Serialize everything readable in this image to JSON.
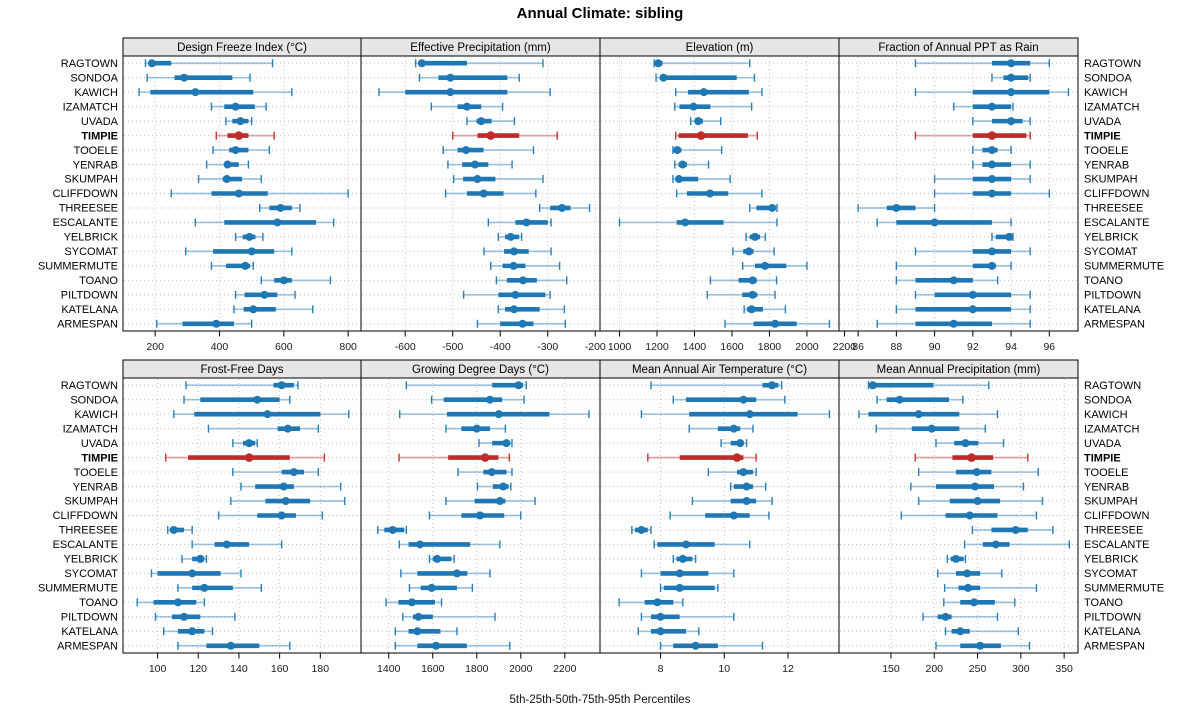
{
  "title": "Annual Climate: sibling",
  "caption": "5th-25th-50th-75th-95th Percentiles",
  "percentiles": [
    "5th",
    "25th",
    "50th",
    "75th",
    "95th"
  ],
  "highlighted_site": "TIMPIE",
  "colors": {
    "normal": "#1f77b4",
    "highlight": "#bf2b28",
    "strip_bg": "#e6e6e6",
    "panel_border": "#000000",
    "grid": "#c3c3c3",
    "axis_text": "#1a1a1a"
  },
  "sites": [
    "RAGTOWN",
    "SONDOA",
    "KAWICH",
    "IZAMATCH",
    "UVADA",
    "TIMPIE",
    "TOOELE",
    "YENRAB",
    "SKUMPAH",
    "CLIFFDOWN",
    "THREESEE",
    "ESCALANTE",
    "YELBRICK",
    "SYCOMAT",
    "SUMMERMUTE",
    "TOANO",
    "PILTDOWN",
    "KATELANA",
    "ARMESPAN"
  ],
  "chart_data": [
    {
      "type": "percentile-dotplot",
      "row": "top",
      "col": 0,
      "title": "Design Freeze Index (°C)",
      "xlim": [
        100,
        840
      ],
      "ticks": [
        200,
        400,
        600,
        800
      ],
      "series": [
        [
          170,
          180,
          190,
          250,
          565
        ],
        [
          175,
          260,
          290,
          440,
          495
        ],
        [
          150,
          185,
          325,
          505,
          625
        ],
        [
          375,
          415,
          450,
          510,
          545
        ],
        [
          420,
          440,
          465,
          490,
          500
        ],
        [
          390,
          425,
          460,
          490,
          570
        ],
        [
          380,
          430,
          450,
          490,
          555
        ],
        [
          360,
          415,
          425,
          460,
          490
        ],
        [
          335,
          410,
          423,
          470,
          530
        ],
        [
          250,
          375,
          460,
          550,
          800
        ],
        [
          525,
          555,
          590,
          625,
          650
        ],
        [
          325,
          415,
          580,
          700,
          755
        ],
        [
          450,
          472,
          493,
          512,
          535
        ],
        [
          295,
          380,
          500,
          570,
          625
        ],
        [
          375,
          420,
          480,
          495,
          505
        ],
        [
          530,
          570,
          600,
          625,
          745
        ],
        [
          450,
          478,
          540,
          580,
          635
        ],
        [
          445,
          475,
          505,
          575,
          690
        ],
        [
          205,
          285,
          390,
          445,
          500
        ]
      ]
    },
    {
      "type": "percentile-dotplot",
      "row": "top",
      "col": 1,
      "title": "Effective Precipitation (mm)",
      "xlim": [
        -693,
        -190
      ],
      "ticks": [
        -600,
        -500,
        -400,
        -300,
        -200
      ],
      "series": [
        [
          -578,
          -572,
          -565,
          -470,
          -310
        ],
        [
          -570,
          -530,
          -505,
          -385,
          -360
        ],
        [
          -655,
          -600,
          -505,
          -385,
          -295
        ],
        [
          -545,
          -490,
          -470,
          -440,
          -395
        ],
        [
          -470,
          -450,
          -440,
          -418,
          -370
        ],
        [
          -500,
          -448,
          -420,
          -360,
          -280
        ],
        [
          -520,
          -490,
          -472,
          -435,
          -330
        ],
        [
          -510,
          -480,
          -453,
          -425,
          -375
        ],
        [
          -498,
          -478,
          -448,
          -410,
          -310
        ],
        [
          -515,
          -470,
          -435,
          -393,
          -325
        ],
        [
          -317,
          -295,
          -270,
          -252,
          -212
        ],
        [
          -425,
          -368,
          -345,
          -300,
          -293
        ],
        [
          -404,
          -390,
          -378,
          -360,
          -355
        ],
        [
          -434,
          -392,
          -371,
          -340,
          -293
        ],
        [
          -420,
          -395,
          -372,
          -347,
          -275
        ],
        [
          -408,
          -386,
          -352,
          -323,
          -260
        ],
        [
          -477,
          -404,
          -368,
          -305,
          -295
        ],
        [
          -404,
          -390,
          -371,
          -317,
          -265
        ],
        [
          -448,
          -400,
          -353,
          -330,
          -263
        ]
      ]
    },
    {
      "type": "percentile-dotplot",
      "row": "top",
      "col": 2,
      "title": "Elevation (m)",
      "xlim": [
        896,
        2171
      ],
      "ticks": [
        1000,
        1200,
        1400,
        1600,
        1800,
        2000,
        2200
      ],
      "series": [
        [
          1185,
          1195,
          1207,
          1230,
          1695
        ],
        [
          1195,
          1215,
          1235,
          1625,
          1720
        ],
        [
          1300,
          1365,
          1450,
          1690,
          1760
        ],
        [
          1295,
          1320,
          1395,
          1485,
          1705
        ],
        [
          1380,
          1400,
          1420,
          1445,
          1540
        ],
        [
          1300,
          1315,
          1435,
          1685,
          1735
        ],
        [
          1285,
          1297,
          1308,
          1330,
          1545
        ],
        [
          1295,
          1315,
          1337,
          1360,
          1475
        ],
        [
          1285,
          1300,
          1317,
          1420,
          1590
        ],
        [
          1305,
          1360,
          1483,
          1580,
          1760
        ],
        [
          1695,
          1730,
          1815,
          1830,
          1840
        ],
        [
          1000,
          1305,
          1350,
          1555,
          1840
        ],
        [
          1675,
          1695,
          1723,
          1750,
          1778
        ],
        [
          1605,
          1660,
          1690,
          1715,
          1825
        ],
        [
          1657,
          1723,
          1776,
          1890,
          2000
        ],
        [
          1485,
          1635,
          1710,
          1732,
          1838
        ],
        [
          1468,
          1655,
          1710,
          1735,
          1830
        ],
        [
          1665,
          1680,
          1705,
          1765,
          1885
        ],
        [
          1563,
          1715,
          1830,
          1945,
          2120
        ]
      ]
    },
    {
      "type": "percentile-dotplot",
      "row": "top",
      "col": 3,
      "title": "Fraction of Annual PPT as Rain",
      "xlim": [
        85,
        97.5
      ],
      "ticks": [
        86,
        88,
        90,
        92,
        94,
        96
      ],
      "series": [
        [
          89,
          93,
          94,
          95,
          96
        ],
        [
          93,
          93.6,
          94,
          94.9,
          95
        ],
        [
          89,
          92,
          94,
          96,
          97
        ],
        [
          91,
          92,
          93,
          94,
          94.1
        ],
        [
          92,
          93,
          94,
          94.6,
          95
        ],
        [
          89,
          92,
          93,
          94.8,
          95
        ],
        [
          92,
          92.5,
          93,
          93.3,
          94
        ],
        [
          92,
          92.5,
          93,
          94,
          95
        ],
        [
          90,
          92,
          93,
          94,
          95
        ],
        [
          90,
          92,
          93,
          94,
          96
        ],
        [
          86,
          87.5,
          88,
          89,
          90
        ],
        [
          87,
          88,
          90,
          93,
          94
        ],
        [
          93,
          93.2,
          93.9,
          94,
          94.1
        ],
        [
          89,
          92,
          93,
          94,
          95
        ],
        [
          88,
          92,
          93,
          93.2,
          94
        ],
        [
          88,
          89,
          91,
          92,
          93.3
        ],
        [
          89,
          90,
          92,
          94,
          95
        ],
        [
          88,
          89,
          92,
          94,
          95
        ],
        [
          87,
          89,
          91,
          93,
          95
        ]
      ]
    },
    {
      "type": "percentile-dotplot",
      "row": "bottom",
      "col": 0,
      "title": "Frost-Free Days",
      "xlim": [
        83,
        200
      ],
      "ticks": [
        100,
        120,
        140,
        160,
        180
      ],
      "series": [
        [
          114,
          157,
          161,
          167,
          169
        ],
        [
          113,
          121,
          149,
          160,
          165
        ],
        [
          108,
          118,
          154,
          180,
          194
        ],
        [
          125,
          159,
          164,
          170,
          179
        ],
        [
          137,
          142,
          145,
          148,
          149
        ],
        [
          104,
          115,
          145,
          165,
          182
        ],
        [
          137,
          161,
          167,
          172,
          179
        ],
        [
          141,
          148,
          162,
          167,
          190
        ],
        [
          136,
          153,
          163,
          175,
          192
        ],
        [
          130,
          149,
          161,
          168,
          181
        ],
        [
          105,
          106,
          108,
          113,
          117
        ],
        [
          117,
          128,
          134,
          145,
          161
        ],
        [
          112,
          117,
          121,
          123,
          124
        ],
        [
          97,
          100,
          117,
          131,
          141
        ],
        [
          110,
          117,
          123,
          137,
          151
        ],
        [
          90,
          98,
          110,
          119,
          123
        ],
        [
          99,
          107,
          113,
          121,
          138
        ],
        [
          103,
          110,
          117,
          123,
          127
        ],
        [
          110,
          124,
          136,
          150,
          165
        ]
      ]
    },
    {
      "type": "percentile-dotplot",
      "row": "bottom",
      "col": 1,
      "title": "Growing Degree Days (°C)",
      "xlim": [
        1274,
        2360
      ],
      "ticks": [
        1400,
        1600,
        1800,
        2000,
        2200
      ],
      "series": [
        [
          1480,
          1870,
          1990,
          2010,
          2025
        ],
        [
          1595,
          1650,
          1860,
          1915,
          2015
        ],
        [
          1450,
          1665,
          1900,
          2130,
          2310
        ],
        [
          1660,
          1730,
          1800,
          1860,
          1930
        ],
        [
          1810,
          1870,
          1935,
          1945,
          1960
        ],
        [
          1447,
          1670,
          1838,
          1898,
          1948
        ],
        [
          1715,
          1830,
          1868,
          1935,
          1960
        ],
        [
          1803,
          1873,
          1920,
          1945,
          1955
        ],
        [
          1660,
          1790,
          1905,
          1930,
          2065
        ],
        [
          1585,
          1730,
          1815,
          1925,
          2000
        ],
        [
          1350,
          1380,
          1418,
          1470,
          1480
        ],
        [
          1448,
          1490,
          1542,
          1770,
          1905
        ],
        [
          1585,
          1600,
          1620,
          1685,
          1697
        ],
        [
          1455,
          1530,
          1710,
          1757,
          1860
        ],
        [
          1494,
          1545,
          1595,
          1710,
          1780
        ],
        [
          1388,
          1444,
          1505,
          1610,
          1640
        ],
        [
          1464,
          1510,
          1535,
          1600,
          1883
        ],
        [
          1430,
          1490,
          1530,
          1635,
          1710
        ],
        [
          1430,
          1530,
          1615,
          1755,
          1950
        ]
      ]
    },
    {
      "type": "percentile-dotplot",
      "row": "bottom",
      "col": 2,
      "title": "Mean Annual Air Temperature (°C)",
      "xlim": [
        6.1,
        13.6
      ],
      "ticks": [
        8,
        10,
        12
      ],
      "series": [
        [
          7.7,
          11.2,
          11.5,
          11.7,
          11.8
        ],
        [
          8.4,
          8.8,
          10.6,
          11.0,
          11.9
        ],
        [
          7.4,
          8.9,
          10.8,
          12.3,
          13.3
        ],
        [
          8.9,
          9.8,
          10.3,
          10.5,
          10.9
        ],
        [
          9.9,
          10.2,
          10.5,
          10.6,
          10.7
        ],
        [
          7.6,
          8.6,
          10.4,
          10.6,
          11.0
        ],
        [
          9.5,
          10.4,
          10.6,
          10.9,
          11.0
        ],
        [
          10.2,
          10.3,
          10.7,
          10.9,
          11.3
        ],
        [
          9.0,
          10.2,
          10.7,
          11.0,
          11.5
        ],
        [
          8.3,
          9.4,
          10.3,
          10.8,
          11.4
        ],
        [
          7.1,
          7.2,
          7.4,
          7.6,
          7.7
        ],
        [
          7.8,
          7.9,
          8.8,
          9.7,
          10.8
        ],
        [
          8.4,
          8.5,
          8.7,
          9.0,
          9.1
        ],
        [
          7.4,
          8.0,
          8.6,
          9.5,
          10.3
        ],
        [
          8.0,
          8.1,
          8.6,
          9.7,
          9.8
        ],
        [
          6.7,
          7.5,
          7.9,
          8.4,
          8.7
        ],
        [
          7.4,
          7.7,
          8.0,
          8.6,
          10.3
        ],
        [
          7.3,
          7.7,
          8.0,
          8.8,
          9.2
        ],
        [
          8.0,
          8.4,
          9.1,
          9.8,
          11.2
        ]
      ]
    },
    {
      "type": "percentile-dotplot",
      "row": "bottom",
      "col": 3,
      "title": "Mean Annual Precipitation (mm)",
      "xlim": [
        90,
        366
      ],
      "ticks": [
        150,
        200,
        250,
        300,
        350
      ],
      "series": [
        [
          124,
          126,
          129,
          199,
          263
        ],
        [
          134,
          145,
          160,
          217,
          233
        ],
        [
          113,
          124,
          182,
          229,
          273
        ],
        [
          133,
          174,
          197,
          229,
          259
        ],
        [
          202,
          223,
          236,
          251,
          280
        ],
        [
          178,
          221,
          243,
          268,
          308
        ],
        [
          182,
          225,
          249,
          266,
          320
        ],
        [
          173,
          202,
          247,
          269,
          303
        ],
        [
          182,
          218,
          250,
          276,
          325
        ],
        [
          162,
          213,
          241,
          273,
          318
        ],
        [
          244,
          266,
          294,
          308,
          337
        ],
        [
          235,
          256,
          271,
          287,
          356
        ],
        [
          215,
          219,
          225,
          234,
          236
        ],
        [
          204,
          225,
          238,
          253,
          278
        ],
        [
          212,
          228,
          239,
          253,
          318
        ],
        [
          211,
          230,
          246,
          270,
          293
        ],
        [
          187,
          204,
          213,
          220,
          273
        ],
        [
          213,
          220,
          230,
          241,
          297
        ],
        [
          202,
          230,
          253,
          277,
          310
        ]
      ]
    }
  ]
}
